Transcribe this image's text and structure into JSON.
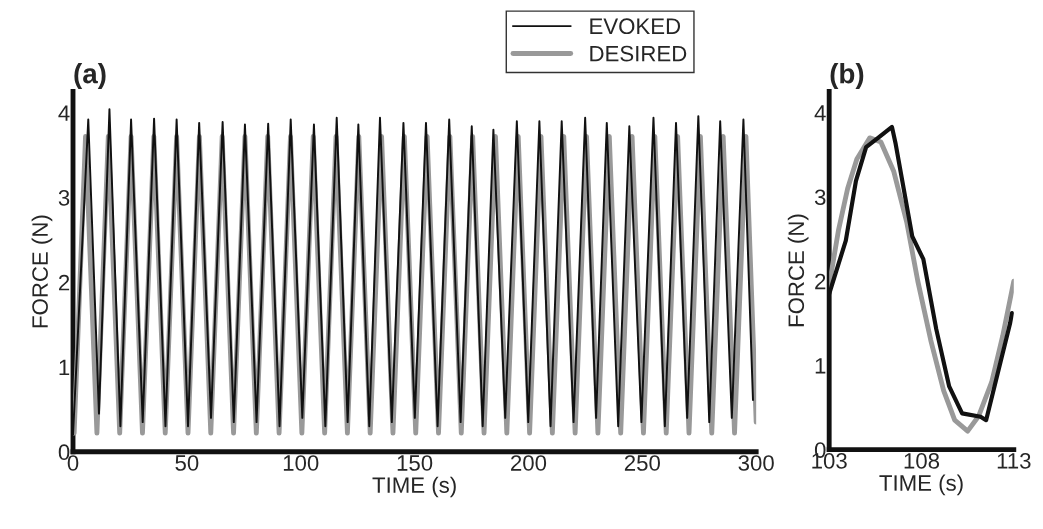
{
  "chart_data": [
    {
      "type": "line",
      "title": "(a)",
      "xlabel": "TIME (s)",
      "ylabel": "FORCE (N)",
      "xlim": [
        0,
        300
      ],
      "xticks": [
        0,
        50,
        100,
        150,
        200,
        250,
        300
      ],
      "ylim": [
        0,
        4.25
      ],
      "yticks": [
        0,
        1,
        2,
        3,
        4
      ],
      "legend": "top right",
      "grid": false,
      "series": [
        {
          "name": "EVOKED",
          "color": "#111111",
          "x": [
            0,
            6.7,
            11.4,
            16.0,
            20.8,
            25.5,
            30.6,
            35.6,
            40.6,
            45.5,
            50.5,
            55.4,
            60.6,
            65.7,
            70.6,
            75.5,
            80.6,
            85.7,
            90.7,
            95.6,
            100.7,
            105.8,
            110.8,
            115.8,
            120.6,
            125.3,
            130.1,
            134.8,
            140.0,
            145.1,
            150.1,
            155.0,
            160.1,
            165.2,
            170.2,
            175.1,
            179.9,
            184.6,
            189.8,
            194.9,
            199.9,
            204.8,
            209.7,
            214.6,
            219.8,
            224.9,
            229.7,
            234.4,
            239.4,
            244.3,
            249.6,
            254.9,
            259.9,
            264.8,
            269.7,
            274.6,
            279.4,
            284.2,
            289.3,
            294.4,
            298.6
          ],
          "values": [
            0.2,
            3.92,
            0.45,
            4.04,
            0.3,
            3.92,
            0.35,
            3.93,
            0.3,
            3.92,
            0.3,
            3.88,
            0.4,
            3.89,
            0.35,
            3.86,
            0.35,
            3.87,
            0.3,
            3.92,
            0.4,
            3.86,
            0.3,
            3.94,
            0.35,
            3.86,
            0.3,
            3.94,
            0.35,
            3.88,
            0.4,
            3.88,
            0.3,
            3.92,
            0.35,
            3.84,
            0.3,
            3.8,
            0.4,
            3.9,
            0.35,
            3.9,
            0.3,
            3.9,
            0.35,
            3.94,
            0.4,
            3.88,
            0.3,
            3.84,
            0.35,
            3.94,
            0.3,
            3.88,
            0.4,
            3.96,
            0.35,
            3.9,
            0.4,
            3.92,
            0.61
          ]
        },
        {
          "name": "DESIRED",
          "color": "#999999",
          "x": [
            0,
            0.5,
            5.5,
            10.5,
            15.5,
            20.5,
            25.5,
            30.5,
            35.5,
            40.5,
            45.5,
            50.5,
            55.5,
            60.5,
            65.5,
            70.5,
            75.5,
            80.5,
            85.5,
            90.5,
            95.5,
            100.5,
            105.5,
            110.5,
            115.5,
            120.5,
            125.5,
            130.5,
            135.5,
            140.5,
            145.5,
            150.5,
            155.5,
            160.5,
            165.5,
            170.5,
            175.5,
            180.5,
            185.5,
            190.5,
            195.5,
            200.5,
            205.5,
            210.5,
            215.5,
            220.5,
            225.5,
            230.5,
            235.5,
            240.5,
            245.5,
            250.5,
            255.5,
            260.5,
            265.5,
            270.5,
            275.5,
            280.5,
            285.5,
            290.5,
            295.5,
            300
          ],
          "values": [
            0.25,
            0.22,
            3.72,
            0.22,
            3.72,
            0.22,
            3.72,
            0.22,
            3.72,
            0.22,
            3.72,
            0.22,
            3.72,
            0.22,
            3.72,
            0.22,
            3.72,
            0.22,
            3.72,
            0.22,
            3.72,
            0.22,
            3.72,
            0.22,
            3.72,
            0.22,
            3.72,
            0.22,
            3.72,
            0.22,
            3.72,
            0.22,
            3.72,
            0.22,
            3.72,
            0.22,
            3.72,
            0.22,
            3.72,
            0.22,
            3.72,
            0.22,
            3.72,
            0.22,
            3.72,
            0.22,
            3.72,
            0.22,
            3.72,
            0.22,
            3.72,
            0.22,
            3.72,
            0.22,
            3.72,
            0.22,
            3.72,
            0.22,
            3.72,
            0.22,
            3.72,
            0.35
          ]
        }
      ]
    },
    {
      "type": "line",
      "title": "(b)",
      "xlabel": "TIME (s)",
      "ylabel": "FORCE (N)",
      "xlim": [
        103,
        113
      ],
      "xticks": [
        103,
        108,
        113
      ],
      "ylim": [
        0,
        4.25
      ],
      "yticks": [
        0,
        1,
        2,
        3,
        4
      ],
      "grid": false,
      "series": [
        {
          "color": "#111111",
          "x": [
            103,
            103.9,
            104.45,
            105.0,
            105.7,
            106.4,
            106.6,
            107.5,
            108.1,
            108.8,
            109.5,
            110.2,
            111.2,
            111.5,
            112.8,
            112.9
          ],
          "values": [
            1.85,
            2.48,
            3.19,
            3.59,
            3.71,
            3.83,
            3.63,
            2.53,
            2.26,
            1.43,
            0.75,
            0.43,
            0.39,
            0.35,
            1.5,
            1.62
          ]
        },
        {
          "color": "#999999",
          "x": [
            103,
            103.5,
            104,
            104.5,
            105.2,
            105.8,
            106.5,
            107.2,
            107.8,
            108.5,
            109.2,
            109.8,
            110.5,
            111.1,
            111.8,
            112.4,
            113
          ],
          "values": [
            1.95,
            2.6,
            3.1,
            3.45,
            3.7,
            3.65,
            3.3,
            2.7,
            2.0,
            1.3,
            0.7,
            0.35,
            0.22,
            0.4,
            0.8,
            1.35,
            2.0
          ]
        }
      ]
    }
  ]
}
